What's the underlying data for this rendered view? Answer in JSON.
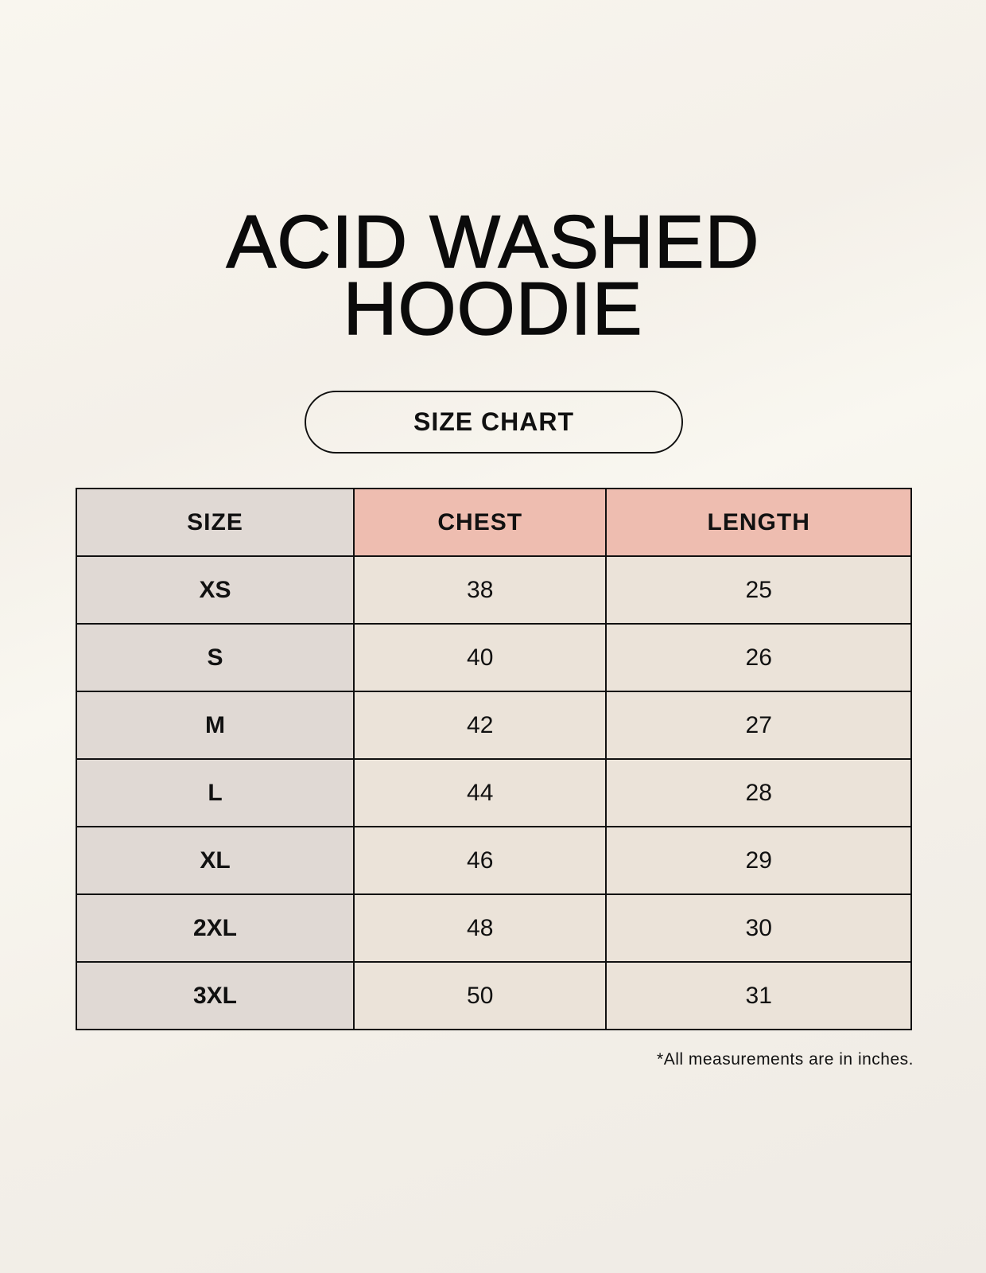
{
  "title": {
    "line1": "ACID WASHED",
    "line2": "HOODIE"
  },
  "badge": "SIZE CHART",
  "table": {
    "headers": [
      "SIZE",
      "CHEST",
      "LENGTH"
    ],
    "rows": [
      [
        "XS",
        "38",
        "25"
      ],
      [
        "S",
        "40",
        "26"
      ],
      [
        "M",
        "42",
        "27"
      ],
      [
        "L",
        "44",
        "28"
      ],
      [
        "XL",
        "46",
        "29"
      ],
      [
        "2XL",
        "48",
        "30"
      ],
      [
        "3XL",
        "50",
        "31"
      ]
    ]
  },
  "footnote": "*All measurements are in inches.",
  "colors": {
    "size_column": "#e0d9d4",
    "header_accent": "#eebdb0",
    "value_cells": "#ebe3d9"
  }
}
